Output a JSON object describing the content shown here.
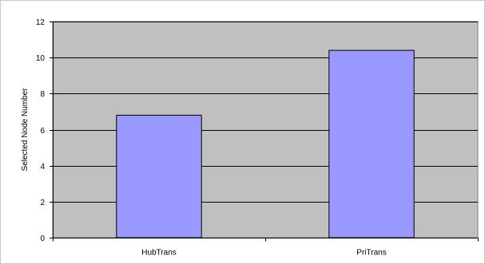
{
  "chart_data": {
    "type": "bar",
    "categories": [
      "HubTrans",
      "PriTrans"
    ],
    "values": [
      6.8,
      10.4
    ],
    "title": "",
    "xlabel": "",
    "ylabel": "Selected Node Number",
    "ylim": [
      0,
      12
    ],
    "yticks": [
      0,
      2,
      4,
      6,
      8,
      10,
      12
    ],
    "grid": true,
    "legend": "none",
    "colors": {
      "bar_fill": "#9999ff",
      "bar_stroke": "#000000",
      "plot_bg": "#c0c0c0",
      "grid": "#000000"
    }
  }
}
